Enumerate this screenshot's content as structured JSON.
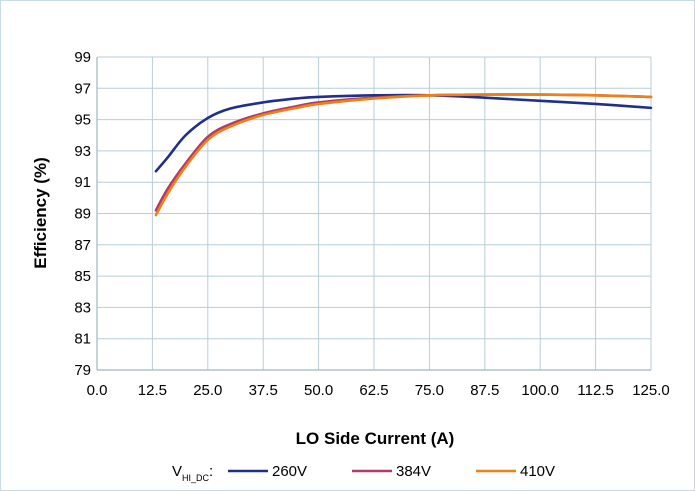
{
  "chart_data": {
    "type": "line",
    "title": "",
    "xlabel": "LO Side Current (A)",
    "ylabel": "Efficiency (%)",
    "xlim": [
      0,
      125
    ],
    "ylim": [
      79,
      99
    ],
    "xticks": [
      0.0,
      12.5,
      25.0,
      37.5,
      50.0,
      62.5,
      75.0,
      87.5,
      100.0,
      112.5,
      125.0
    ],
    "xtick_labels": [
      "0.0",
      "12.5",
      "25.0",
      "37.5",
      "50.0",
      "62.5",
      "75.0",
      "87.5",
      "100.0",
      "112.5",
      "125.0"
    ],
    "yticks": [
      79,
      81,
      83,
      85,
      87,
      89,
      91,
      93,
      95,
      97,
      99
    ],
    "grid": true,
    "legend_position": "bottom",
    "legend_title": {
      "main": "V",
      "sub": "HI_DC",
      "suffix": ":"
    },
    "series": [
      {
        "name": "260V",
        "color": "#1f2f8a",
        "x": [
          13.3,
          16,
          20,
          25,
          30,
          37.5,
          45,
          50,
          62.5,
          75,
          87.5,
          100,
          112.5,
          125
        ],
        "y": [
          91.7,
          92.6,
          94.0,
          95.1,
          95.7,
          96.1,
          96.35,
          96.45,
          96.55,
          96.55,
          96.4,
          96.2,
          96.0,
          95.75
        ]
      },
      {
        "name": "384V",
        "color": "#b03a6e",
        "x": [
          13.3,
          16,
          20,
          25,
          30,
          37.5,
          45,
          50,
          62.5,
          75,
          87.5,
          100,
          112.5,
          125
        ],
        "y": [
          89.2,
          90.6,
          92.2,
          93.9,
          94.7,
          95.4,
          95.85,
          96.1,
          96.4,
          96.55,
          96.6,
          96.6,
          96.55,
          96.45
        ]
      },
      {
        "name": "410V",
        "color": "#f07f14",
        "x": [
          13.3,
          16,
          20,
          25,
          30,
          37.5,
          45,
          50,
          62.5,
          75,
          87.5,
          100,
          112.5,
          125
        ],
        "y": [
          88.9,
          90.3,
          92.0,
          93.7,
          94.55,
          95.3,
          95.75,
          96.0,
          96.35,
          96.55,
          96.6,
          96.6,
          96.55,
          96.45
        ]
      }
    ]
  }
}
